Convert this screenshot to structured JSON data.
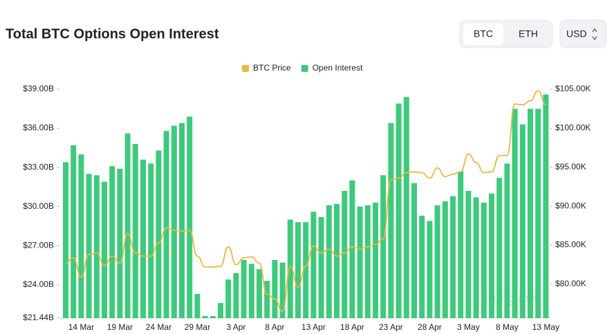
{
  "controls": {
    "coins": [
      "BTC",
      "ETH"
    ],
    "currency": "USD"
  },
  "chart_data": {
    "type": "bar",
    "title": "Total BTC Options Open Interest",
    "watermark": "coinglass",
    "categories": [
      null,
      null,
      "14 Mar",
      null,
      null,
      null,
      null,
      "19 Mar",
      null,
      null,
      null,
      null,
      "24 Mar",
      null,
      null,
      null,
      null,
      "29 Mar",
      null,
      null,
      null,
      null,
      "3 Apr",
      null,
      null,
      null,
      null,
      "8 Apr",
      null,
      null,
      null,
      null,
      "13 Apr",
      null,
      null,
      null,
      null,
      "18 Apr",
      null,
      null,
      null,
      null,
      "23 Apr",
      null,
      null,
      null,
      null,
      "28 Apr",
      null,
      null,
      null,
      null,
      "3 May",
      null,
      null,
      null,
      null,
      "8 May",
      null,
      null,
      null,
      null,
      "13 May"
    ],
    "series": [
      {
        "name": "Open Interest",
        "color": "#3fc97c",
        "values": [
          33.4,
          34.7,
          34.0,
          32.5,
          32.4,
          31.9,
          33.1,
          32.9,
          35.6,
          34.8,
          33.6,
          33.3,
          34.3,
          35.8,
          36.2,
          36.4,
          36.9,
          23.3,
          21.6,
          21.6,
          22.6,
          24.4,
          24.9,
          25.9,
          25.6,
          25.2,
          24.3,
          25.9,
          25.7,
          29.0,
          28.8,
          28.8,
          29.6,
          29.2,
          30.1,
          30.2,
          31.2,
          32.0,
          30.0,
          30.1,
          30.3,
          32.4,
          36.4,
          37.9,
          38.4,
          31.8,
          29.3,
          28.9,
          30.1,
          30.4,
          30.8,
          32.7,
          31.2,
          30.7,
          30.3,
          31.0,
          32.2,
          33.3,
          37.5,
          36.3,
          37.5,
          37.5,
          38.6
        ]
      },
      {
        "name": "BTC Price",
        "color": "#e8b84a",
        "type": "line",
        "axis": "y2",
        "values": [
          82.7,
          83.4,
          80.9,
          83.8,
          84.0,
          82.4,
          83.6,
          82.7,
          86.5,
          84.0,
          83.6,
          83.6,
          85.3,
          87.2,
          86.9,
          86.8,
          86.9,
          83.6,
          82.2,
          82.2,
          82.3,
          84.8,
          82.5,
          83.4,
          83.5,
          82.7,
          78.7,
          78.1,
          76.5,
          82.3,
          79.6,
          82.3,
          84.9,
          84.0,
          84.5,
          83.6,
          84.0,
          84.8,
          84.5,
          84.8,
          85.1,
          85.8,
          93.4,
          93.6,
          94.3,
          94.4,
          94.3,
          93.6,
          94.9,
          93.8,
          94.1,
          94.4,
          96.7,
          95.6,
          94.3,
          94.4,
          96.5,
          96.5,
          103.1,
          103.0,
          103.5,
          104.8,
          103.0
        ]
      }
    ],
    "ylim": [
      21.44,
      39
    ],
    "yticks": [
      {
        "value": 21.44,
        "label": "$21.44B"
      },
      {
        "value": 24,
        "label": "$24.00B"
      },
      {
        "value": 27,
        "label": "$27.00B"
      },
      {
        "value": 30,
        "label": "$30.00B"
      },
      {
        "value": 33,
        "label": "$33.00B"
      },
      {
        "value": 36,
        "label": "$36.00B"
      },
      {
        "value": 39,
        "label": "$39.00B"
      }
    ],
    "y2lim": [
      75.65,
      105
    ],
    "y2ticks": [
      {
        "value": 80,
        "label": "$80.00K"
      },
      {
        "value": 85,
        "label": "$85.00K"
      },
      {
        "value": 90,
        "label": "$90.00K"
      },
      {
        "value": 95,
        "label": "$95.00K"
      },
      {
        "value": 100,
        "label": "$100.00K"
      },
      {
        "value": 105,
        "label": "$105.00K"
      }
    ],
    "grid": false,
    "legend": "top"
  }
}
